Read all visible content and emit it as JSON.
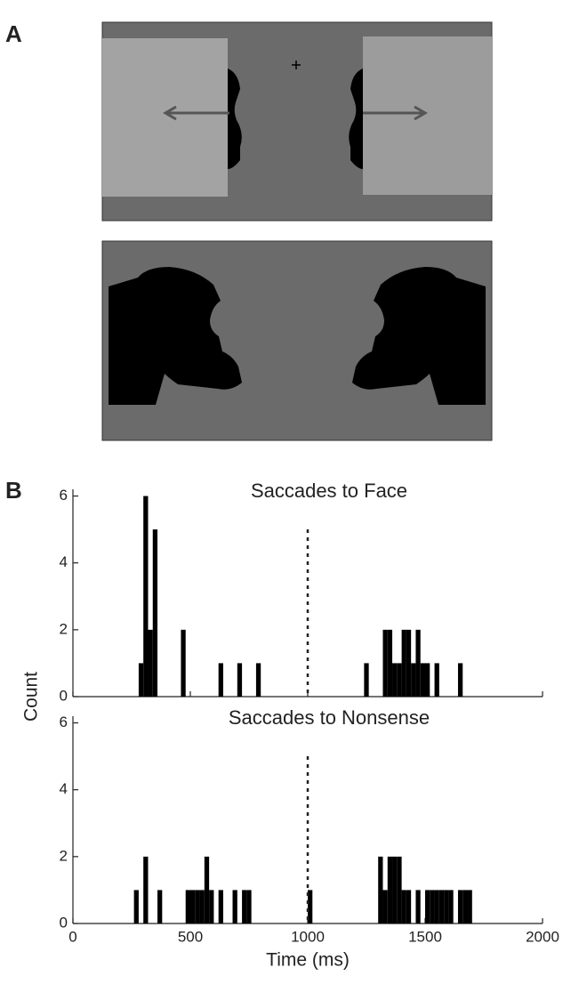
{
  "panel_labels": {
    "a": "A",
    "b": "B"
  },
  "chart_data": [
    {
      "type": "histogram",
      "title": "Saccades to Face",
      "ylabel": "Count",
      "bins": [
        0,
        20,
        40,
        60,
        80,
        100,
        120,
        140,
        160,
        180,
        200,
        220,
        240,
        260,
        280,
        300,
        320,
        340,
        360,
        380,
        400,
        420,
        440,
        460,
        480,
        500,
        520,
        540,
        560,
        580,
        600,
        620,
        640,
        660,
        680,
        700,
        720,
        740,
        760,
        780,
        800,
        820,
        840,
        860,
        880,
        900,
        920,
        940,
        960,
        980,
        1000,
        1020,
        1040,
        1060,
        1080,
        1100,
        1120,
        1140,
        1160,
        1180,
        1200,
        1220,
        1240,
        1260,
        1280,
        1300,
        1320,
        1340,
        1360,
        1380,
        1400,
        1420,
        1440,
        1460,
        1480,
        1500,
        1520,
        1540,
        1560,
        1580,
        1600,
        1620,
        1640,
        1660,
        1680,
        1700,
        1720,
        1740,
        1760,
        1780,
        1800,
        1820,
        1840,
        1860,
        1880,
        1900,
        1920,
        1940,
        1960,
        1980,
        2000
      ],
      "values": [
        0,
        0,
        0,
        0,
        0,
        0,
        0,
        0,
        0,
        0,
        0,
        0,
        0,
        0,
        1,
        6,
        2,
        5,
        0,
        0,
        0,
        0,
        0,
        2,
        0,
        0,
        0,
        0,
        0,
        0,
        0,
        1,
        0,
        0,
        0,
        1,
        0,
        0,
        0,
        1,
        0,
        0,
        0,
        0,
        0,
        0,
        0,
        0,
        0,
        0,
        0,
        0,
        0,
        0,
        0,
        0,
        0,
        0,
        0,
        0,
        0,
        0,
        1,
        0,
        0,
        0,
        2,
        2,
        1,
        1,
        2,
        2,
        1,
        2,
        1,
        1,
        0,
        1,
        0,
        0,
        0,
        0,
        1,
        0,
        0,
        0,
        0,
        0,
        0,
        0,
        0,
        0,
        0,
        0,
        0,
        0,
        0,
        0,
        0,
        0
      ],
      "color": "#000000",
      "xlim": [
        0,
        2000
      ],
      "xticks": [
        0,
        500,
        1000,
        1500,
        2000
      ],
      "show_xtick_labels": false,
      "ylim": [
        0,
        6.2
      ],
      "yticks": [
        0,
        2,
        4,
        6
      ],
      "reference_line_x": 1000
    },
    {
      "type": "histogram",
      "title": "Saccades to Nonsense",
      "xlabel": "Time (ms)",
      "bins": [
        0,
        20,
        40,
        60,
        80,
        100,
        120,
        140,
        160,
        180,
        200,
        220,
        240,
        260,
        280,
        300,
        320,
        340,
        360,
        380,
        400,
        420,
        440,
        460,
        480,
        500,
        520,
        540,
        560,
        580,
        600,
        620,
        640,
        660,
        680,
        700,
        720,
        740,
        760,
        780,
        800,
        820,
        840,
        860,
        880,
        900,
        920,
        940,
        960,
        980,
        1000,
        1020,
        1040,
        1060,
        1080,
        1100,
        1120,
        1140,
        1160,
        1180,
        1200,
        1220,
        1240,
        1260,
        1280,
        1300,
        1320,
        1340,
        1360,
        1380,
        1400,
        1420,
        1440,
        1460,
        1480,
        1500,
        1520,
        1540,
        1560,
        1580,
        1600,
        1620,
        1640,
        1660,
        1680,
        1700,
        1720,
        1740,
        1760,
        1780,
        1800,
        1820,
        1840,
        1860,
        1880,
        1900,
        1920,
        1940,
        1960,
        1980,
        2000
      ],
      "values": [
        0,
        0,
        0,
        0,
        0,
        0,
        0,
        0,
        0,
        0,
        0,
        0,
        0,
        1,
        0,
        2,
        0,
        0,
        1,
        0,
        0,
        0,
        0,
        0,
        1,
        1,
        1,
        1,
        2,
        1,
        0,
        1,
        0,
        0,
        1,
        0,
        1,
        1,
        0,
        0,
        0,
        0,
        0,
        0,
        0,
        0,
        0,
        0,
        0,
        0,
        1,
        0,
        0,
        0,
        0,
        0,
        0,
        0,
        0,
        0,
        0,
        0,
        0,
        0,
        0,
        2,
        1,
        2,
        2,
        2,
        1,
        1,
        0,
        1,
        0,
        1,
        1,
        1,
        1,
        1,
        1,
        0,
        1,
        1,
        1,
        0,
        0,
        0,
        0,
        0,
        0,
        0,
        0,
        0,
        0,
        0,
        0,
        0,
        0,
        0
      ],
      "color": "#000000",
      "xlim": [
        0,
        2000
      ],
      "xticks": [
        0,
        500,
        1000,
        1500,
        2000
      ],
      "show_xtick_labels": true,
      "ylim": [
        0,
        6.2
      ],
      "yticks": [
        0,
        2,
        4,
        6
      ],
      "reference_line_x": 1000
    }
  ]
}
